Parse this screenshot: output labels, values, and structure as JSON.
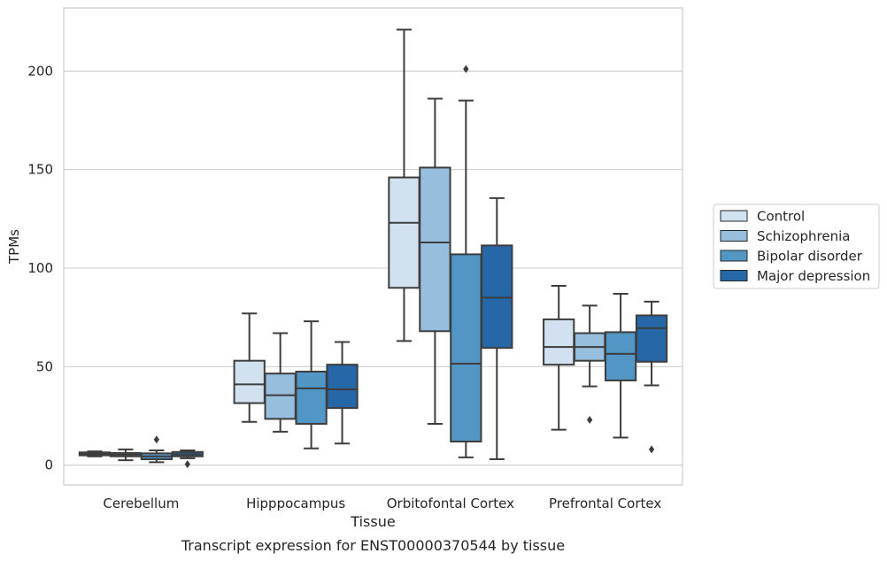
{
  "chart_data": {
    "type": "boxplot",
    "title": "Transcript expression for ENST00000370544 by tissue",
    "xlabel": "Tissue",
    "ylabel": "TPMs",
    "ylim": [
      -10,
      232
    ],
    "yticks": [
      0,
      50,
      100,
      150,
      200
    ],
    "grid": "horizontal",
    "legend_position": "right",
    "categories": [
      "Cerebellum",
      "Hipppocampus",
      "Orbitofontal Cortex",
      "Prefrontal Cortex"
    ],
    "series": [
      {
        "name": "Control",
        "color": "#d1e1f0",
        "boxes": [
          {
            "whislo": 4.5,
            "q1": 5.0,
            "med": 5.7,
            "q3": 6.5,
            "whishi": 7.0,
            "fliers": []
          },
          {
            "whislo": 22,
            "q1": 31.5,
            "med": 41,
            "q3": 53,
            "whishi": 77,
            "fliers": []
          },
          {
            "whislo": 63,
            "q1": 90,
            "med": 123,
            "q3": 146,
            "whishi": 221,
            "fliers": []
          },
          {
            "whislo": 18,
            "q1": 51,
            "med": 60,
            "q3": 74,
            "whishi": 91,
            "fliers": []
          }
        ]
      },
      {
        "name": "Schizophrenia",
        "color": "#97bfdd",
        "boxes": [
          {
            "whislo": 2.5,
            "q1": 4.5,
            "med": 5.3,
            "q3": 6.2,
            "whishi": 8.0,
            "fliers": []
          },
          {
            "whislo": 17,
            "q1": 23.5,
            "med": 35.5,
            "q3": 46.5,
            "whishi": 67,
            "fliers": []
          },
          {
            "whislo": 21,
            "q1": 68,
            "med": 113,
            "q3": 151,
            "whishi": 186,
            "fliers": []
          },
          {
            "whislo": 40,
            "q1": 53,
            "med": 60,
            "q3": 67,
            "whishi": 81,
            "fliers": [
              23
            ]
          }
        ]
      },
      {
        "name": "Bipolar disorder",
        "color": "#5296c6",
        "boxes": [
          {
            "whislo": 1.5,
            "q1": 3.0,
            "med": 4.5,
            "q3": 6.0,
            "whishi": 7.5,
            "fliers": [
              13
            ]
          },
          {
            "whislo": 8.5,
            "q1": 21,
            "med": 39,
            "q3": 47.5,
            "whishi": 73,
            "fliers": []
          },
          {
            "whislo": 4,
            "q1": 12,
            "med": 51.5,
            "q3": 107,
            "whishi": 185,
            "fliers": [
              201
            ]
          },
          {
            "whislo": 14,
            "q1": 43,
            "med": 56.5,
            "q3": 67.5,
            "whishi": 87,
            "fliers": []
          }
        ]
      },
      {
        "name": "Major depression",
        "color": "#2667a8",
        "boxes": [
          {
            "whislo": 3.5,
            "q1": 4.5,
            "med": 5.5,
            "q3": 6.7,
            "whishi": 7.5,
            "fliers": [
              0.5
            ]
          },
          {
            "whislo": 11,
            "q1": 29,
            "med": 38.5,
            "q3": 51,
            "whishi": 62.5,
            "fliers": []
          },
          {
            "whislo": 3,
            "q1": 59.5,
            "med": 85,
            "q3": 111.5,
            "whishi": 135.5,
            "fliers": []
          },
          {
            "whislo": 40.5,
            "q1": 52.5,
            "med": 69.5,
            "q3": 76,
            "whishi": 83,
            "fliers": [
              8
            ]
          }
        ]
      }
    ]
  }
}
